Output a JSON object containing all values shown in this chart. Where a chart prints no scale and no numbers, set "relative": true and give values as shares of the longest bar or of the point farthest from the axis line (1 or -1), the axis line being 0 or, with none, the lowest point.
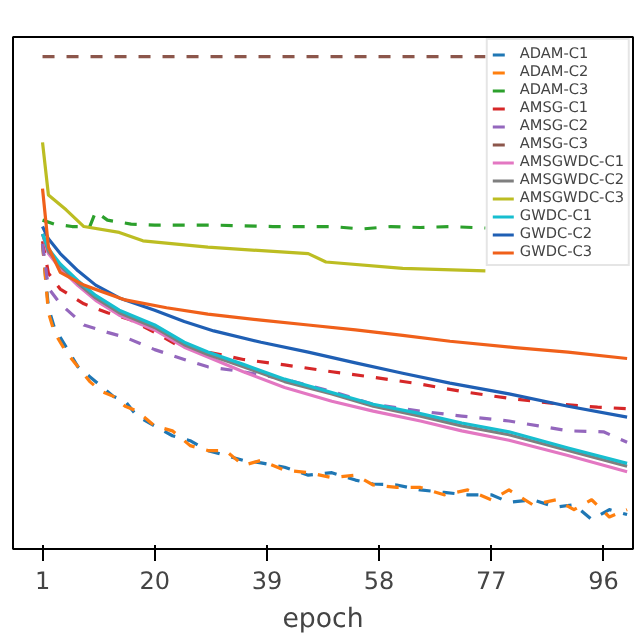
{
  "chart_data": {
    "type": "line",
    "relative": true,
    "xlabel": "epoch",
    "xlim": [
      -4,
      101
    ],
    "xticks": [
      1,
      20,
      39,
      58,
      77,
      96
    ],
    "grid": false,
    "legend": "top right",
    "marker": "none",
    "series": [
      {
        "name": "ADAM-C1",
        "color": "#1f77b4",
        "line_style": "dashed",
        "x": [
          1,
          2,
          3,
          5,
          7,
          9,
          11,
          13,
          15,
          17,
          20,
          23,
          26,
          29,
          32,
          35,
          38,
          42,
          46,
          50,
          54,
          57,
          61,
          65,
          69,
          73,
          77,
          80,
          84,
          88,
          91,
          94,
          97,
          100
        ],
        "values": [
          0.62,
          0.49,
          0.45,
          0.41,
          0.37,
          0.35,
          0.33,
          0.31,
          0.3,
          0.27,
          0.25,
          0.23,
          0.22,
          0.2,
          0.19,
          0.18,
          0.175,
          0.166,
          0.15,
          0.155,
          0.14,
          0.132,
          0.13,
          0.12,
          0.115,
          0.11,
          0.11,
          0.095,
          0.1,
          0.085,
          0.09,
          0.06,
          0.08,
          0.07
        ]
      },
      {
        "name": "ADAM-C2",
        "color": "#ff7f0e",
        "line_style": "dashed",
        "x": [
          1,
          2,
          3,
          5,
          7,
          9,
          11,
          13,
          15,
          17,
          20,
          23,
          26,
          29,
          32,
          35,
          38,
          42,
          46,
          50,
          54,
          57,
          61,
          65,
          69,
          73,
          77,
          80,
          84,
          88,
          91,
          94,
          97,
          100
        ],
        "values": [
          0.62,
          0.48,
          0.44,
          0.4,
          0.37,
          0.34,
          0.32,
          0.31,
          0.29,
          0.28,
          0.25,
          0.24,
          0.21,
          0.2,
          0.2,
          0.17,
          0.18,
          0.16,
          0.155,
          0.145,
          0.15,
          0.13,
          0.125,
          0.125,
          0.11,
          0.12,
          0.1,
          0.12,
          0.09,
          0.1,
          0.08,
          0.1,
          0.065,
          0.08
        ]
      },
      {
        "name": "ADAM-C3",
        "color": "#2ca02c",
        "line_style": "dashed",
        "x": [
          1,
          3,
          6,
          9,
          10,
          12,
          16,
          20,
          30,
          40,
          50,
          55,
          60,
          65,
          70,
          76
        ],
        "values": [
          0.668,
          0.66,
          0.655,
          0.655,
          0.685,
          0.668,
          0.66,
          0.658,
          0.658,
          0.655,
          0.655,
          0.65,
          0.655,
          0.653,
          0.655,
          0.652
        ]
      },
      {
        "name": "AMSG-C1",
        "color": "#d62728",
        "line_style": "dashed",
        "x": [
          1,
          2,
          4,
          8,
          12,
          16,
          20,
          24,
          29,
          35,
          42,
          50,
          57,
          65,
          72,
          80,
          88,
          95,
          100
        ],
        "values": [
          0.625,
          0.56,
          0.528,
          0.498,
          0.48,
          0.465,
          0.44,
          0.413,
          0.4,
          0.385,
          0.374,
          0.36,
          0.349,
          0.335,
          0.32,
          0.306,
          0.295,
          0.288,
          0.285
        ]
      },
      {
        "name": "AMSG-C2",
        "color": "#9467bd",
        "line_style": "dashed",
        "x": [
          1,
          2,
          4,
          8,
          12,
          15,
          20,
          25,
          29,
          35,
          42,
          50,
          57,
          65,
          72,
          80,
          85,
          90,
          96,
          100
        ],
        "values": [
          0.62,
          0.53,
          0.498,
          0.455,
          0.44,
          0.43,
          0.405,
          0.385,
          0.37,
          0.36,
          0.345,
          0.32,
          0.294,
          0.28,
          0.27,
          0.26,
          0.25,
          0.24,
          0.238,
          0.217
        ]
      },
      {
        "name": "AMSG-C3",
        "color": "#8c564b",
        "line_style": "dashed",
        "x": [
          1,
          76
        ],
        "values": [
          1.0,
          1.0
        ]
      },
      {
        "name": "AMSGWDC-C1",
        "color": "#e377c2",
        "line_style": "solid",
        "x": [
          1,
          2,
          4,
          7,
          10,
          14,
          20,
          25,
          29,
          35,
          42,
          50,
          57,
          65,
          72,
          80,
          90,
          100
        ],
        "values": [
          0.64,
          0.6,
          0.57,
          0.535,
          0.505,
          0.475,
          0.445,
          0.41,
          0.39,
          0.36,
          0.328,
          0.3,
          0.28,
          0.26,
          0.24,
          0.221,
          0.19,
          0.157
        ]
      },
      {
        "name": "AMSGWDC-C2",
        "color": "#7f7f7f",
        "line_style": "solid",
        "x": [
          1,
          2,
          4,
          7,
          10,
          14,
          20,
          25,
          29,
          35,
          42,
          50,
          57,
          65,
          72,
          80,
          90,
          100
        ],
        "values": [
          0.64,
          0.605,
          0.575,
          0.54,
          0.51,
          0.48,
          0.45,
          0.415,
          0.395,
          0.37,
          0.34,
          0.315,
          0.29,
          0.27,
          0.25,
          0.232,
          0.2,
          0.168
        ]
      },
      {
        "name": "AMSGWDC-C3",
        "color": "#bcbd22",
        "line_style": "solid",
        "x": [
          1,
          2,
          5,
          8,
          14,
          18,
          29,
          46,
          49,
          62,
          76
        ],
        "values": [
          0.826,
          0.719,
          0.689,
          0.655,
          0.643,
          0.626,
          0.613,
          0.6,
          0.583,
          0.57,
          0.565
        ]
      },
      {
        "name": "GWDC-C1",
        "color": "#17becf",
        "line_style": "solid",
        "x": [
          1,
          2,
          4,
          7,
          10,
          14,
          20,
          25,
          29,
          35,
          42,
          50,
          57,
          65,
          72,
          80,
          90,
          100
        ],
        "values": [
          0.64,
          0.61,
          0.579,
          0.545,
          0.515,
          0.485,
          0.455,
          0.42,
          0.4,
          0.375,
          0.345,
          0.318,
          0.294,
          0.275,
          0.256,
          0.238,
          0.205,
          0.174
        ]
      },
      {
        "name": "GWDC-C2",
        "color": "#1f5fb4",
        "line_style": "solid",
        "x": [
          1,
          2,
          4,
          7,
          10,
          14,
          20,
          25,
          30,
          38,
          46,
          54,
          62,
          70,
          80,
          90,
          100
        ],
        "values": [
          0.655,
          0.63,
          0.6,
          0.565,
          0.536,
          0.51,
          0.485,
          0.462,
          0.443,
          0.42,
          0.4,
          0.378,
          0.357,
          0.337,
          0.315,
          0.29,
          0.268
        ]
      },
      {
        "name": "GWDC-C3",
        "color": "#f0601a",
        "line_style": "solid",
        "x": [
          1,
          2,
          4,
          8,
          15,
          22,
          29,
          38,
          46,
          54,
          62,
          70,
          81,
          90,
          100
        ],
        "values": [
          0.732,
          0.613,
          0.562,
          0.536,
          0.506,
          0.49,
          0.477,
          0.465,
          0.455,
          0.445,
          0.434,
          0.422,
          0.409,
          0.4,
          0.387
        ]
      }
    ]
  }
}
